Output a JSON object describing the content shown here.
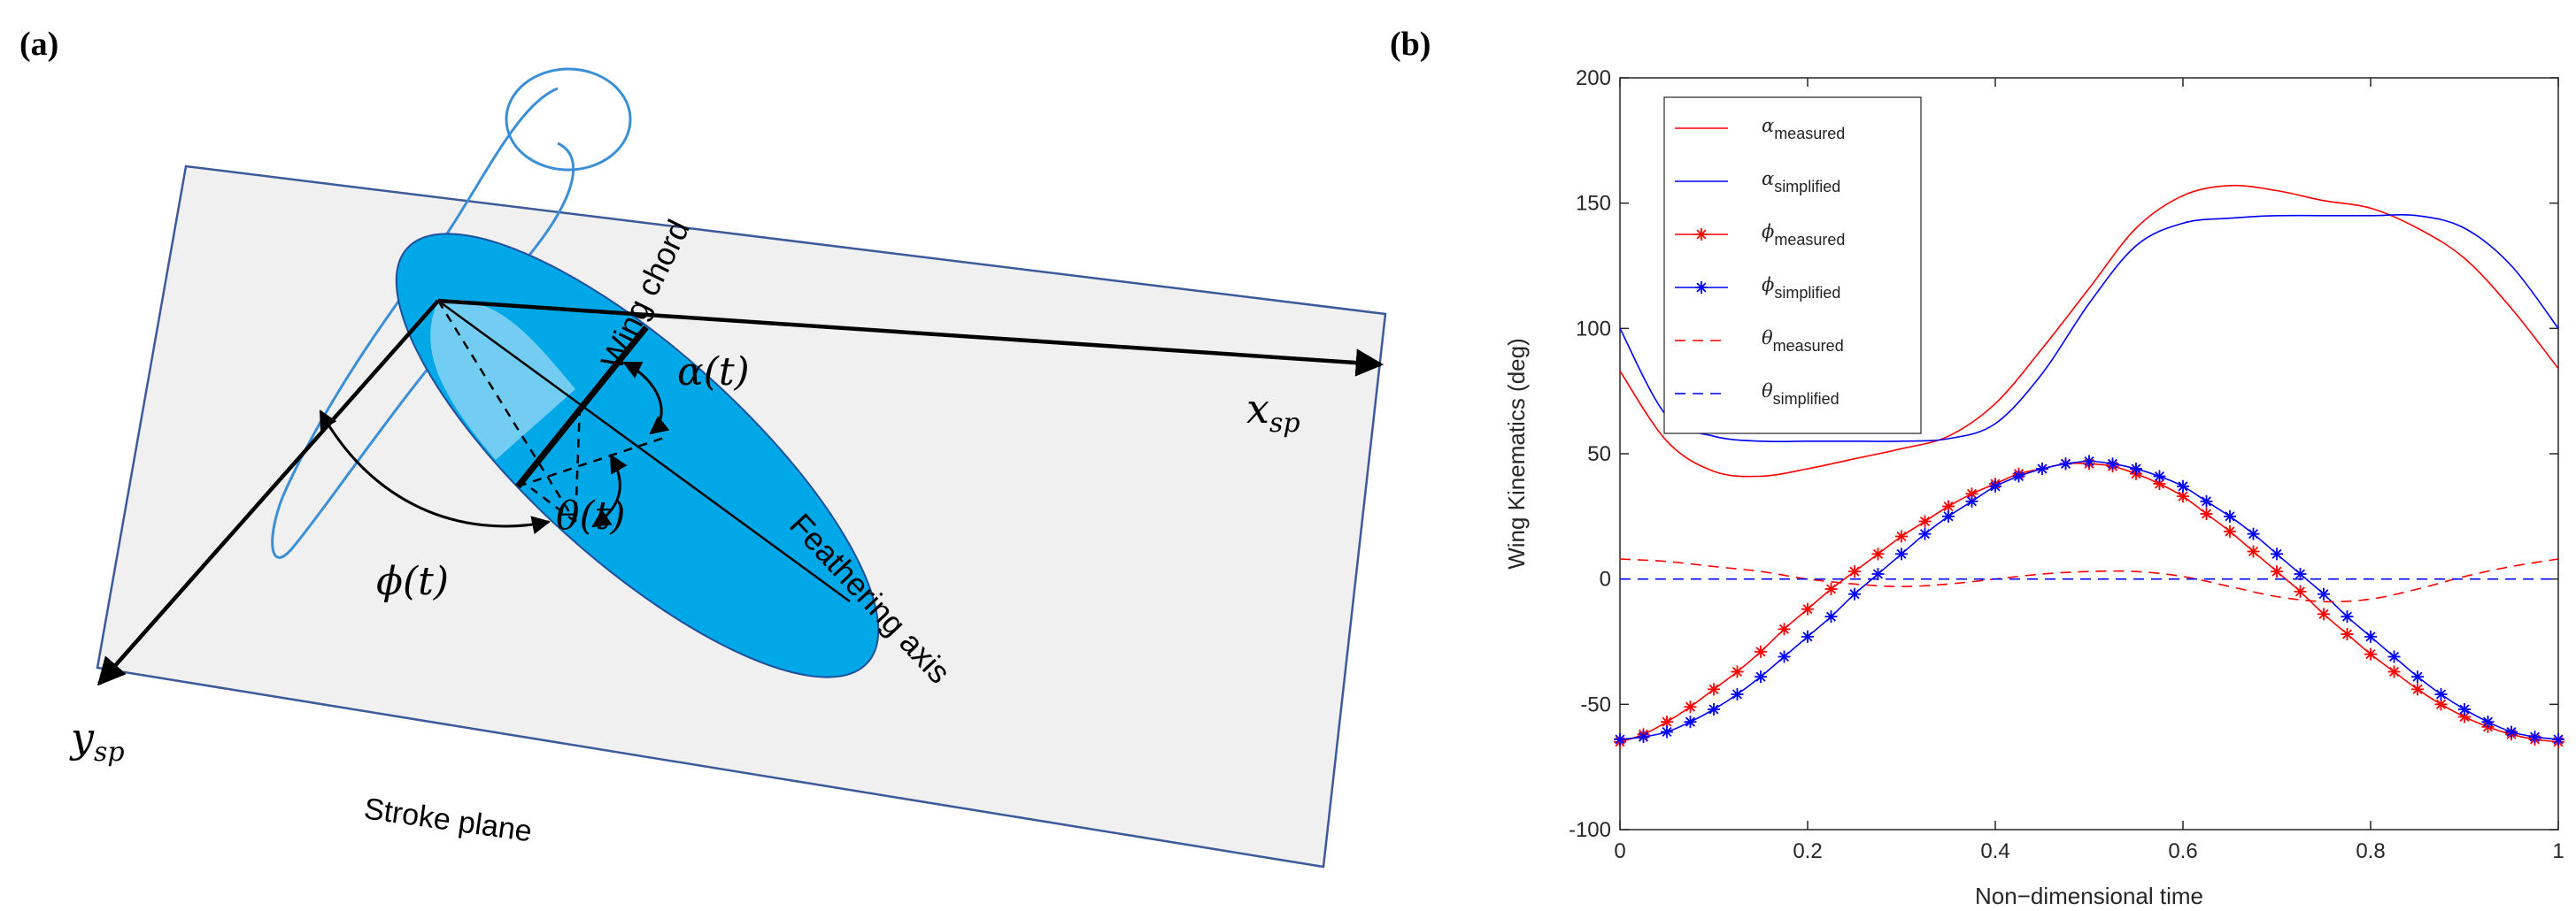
{
  "panels": {
    "a_label": "(a)",
    "b_label": "(b)"
  },
  "diagram": {
    "x_axis_label": "x",
    "x_axis_sub": "sp",
    "y_axis_label": "y",
    "y_axis_sub": "sp",
    "stroke_plane": "Stroke plane",
    "wing_chord": "Wing chord",
    "feathering_axis": "Feathering axis",
    "alpha": "α(t)",
    "theta": "θ(t)",
    "phi": "ϕ(t)",
    "colors": {
      "plane_fill": "#f0f0f0",
      "plane_stroke": "#3c5a9a",
      "wing_fill": "#00a8e8",
      "wing_light": "#7fd0f3",
      "path_stroke": "#3a8fd6"
    }
  },
  "chart_data": {
    "type": "line",
    "title": "",
    "xlabel": "Non−dimensional time",
    "ylabel": "Wing Kinematics (deg)",
    "xlim": [
      0,
      1
    ],
    "ylim": [
      -100,
      200
    ],
    "xticks": [
      0,
      0.2,
      0.4,
      0.6,
      0.8,
      1
    ],
    "xtick_labels": [
      "0",
      "0.2",
      "0.4",
      "0.6",
      "0.8",
      "1"
    ],
    "yticks": [
      -100,
      -50,
      0,
      50,
      100,
      150,
      200
    ],
    "ytick_labels": [
      "-100",
      "-50",
      "0",
      "50",
      "100",
      "150",
      "200"
    ],
    "legend_position": "top-left",
    "series": [
      {
        "name": "α",
        "sub": "measured",
        "color": "#ff0000",
        "style": "solid",
        "marker": "none",
        "x": [
          0,
          0.05,
          0.1,
          0.15,
          0.2,
          0.25,
          0.3,
          0.35,
          0.4,
          0.45,
          0.5,
          0.55,
          0.6,
          0.65,
          0.7,
          0.75,
          0.8,
          0.85,
          0.9,
          0.95,
          1.0
        ],
        "y": [
          83,
          55,
          43,
          41,
          44,
          48,
          52,
          57,
          70,
          92,
          116,
          140,
          153,
          157,
          155,
          151,
          148,
          140,
          128,
          108,
          84
        ]
      },
      {
        "name": "α",
        "sub": "simplified",
        "color": "#0000ff",
        "style": "solid",
        "marker": "none",
        "x": [
          0,
          0.05,
          0.1,
          0.15,
          0.2,
          0.25,
          0.3,
          0.35,
          0.4,
          0.45,
          0.5,
          0.55,
          0.6,
          0.65,
          0.7,
          0.75,
          0.8,
          0.85,
          0.9,
          0.95,
          1.0
        ],
        "y": [
          100,
          65,
          57,
          55,
          55,
          55,
          55,
          56,
          62,
          82,
          110,
          133,
          142,
          144,
          145,
          145,
          145,
          145,
          140,
          125,
          100
        ]
      },
      {
        "name": "ϕ",
        "sub": "measured",
        "color": "#ff0000",
        "style": "solid",
        "marker": "star",
        "x": [
          0,
          0.025,
          0.05,
          0.075,
          0.1,
          0.125,
          0.15,
          0.175,
          0.2,
          0.225,
          0.25,
          0.275,
          0.3,
          0.325,
          0.35,
          0.375,
          0.4,
          0.425,
          0.45,
          0.475,
          0.5,
          0.525,
          0.55,
          0.575,
          0.6,
          0.625,
          0.65,
          0.675,
          0.7,
          0.725,
          0.75,
          0.775,
          0.8,
          0.825,
          0.85,
          0.875,
          0.9,
          0.925,
          0.95,
          0.975,
          1.0
        ],
        "y": [
          -65,
          -62,
          -57,
          -51,
          -44,
          -37,
          -29,
          -20,
          -12,
          -4,
          3,
          10,
          17,
          23,
          29,
          34,
          38,
          42,
          44,
          46,
          46,
          45,
          42,
          38,
          33,
          26,
          19,
          11,
          3,
          -5,
          -14,
          -22,
          -30,
          -37,
          -44,
          -50,
          -55,
          -59,
          -62,
          -64,
          -65
        ]
      },
      {
        "name": "ϕ",
        "sub": "simplified",
        "color": "#0000ff",
        "style": "solid",
        "marker": "star",
        "x": [
          0,
          0.025,
          0.05,
          0.075,
          0.1,
          0.125,
          0.15,
          0.175,
          0.2,
          0.225,
          0.25,
          0.275,
          0.3,
          0.325,
          0.35,
          0.375,
          0.4,
          0.425,
          0.45,
          0.475,
          0.5,
          0.525,
          0.55,
          0.575,
          0.6,
          0.625,
          0.65,
          0.675,
          0.7,
          0.725,
          0.75,
          0.775,
          0.8,
          0.825,
          0.85,
          0.875,
          0.9,
          0.925,
          0.95,
          0.975,
          1.0
        ],
        "y": [
          -64,
          -63,
          -61,
          -57,
          -52,
          -46,
          -39,
          -31,
          -23,
          -15,
          -6,
          2,
          10,
          18,
          25,
          31,
          37,
          41,
          44,
          46,
          47,
          46,
          44,
          41,
          37,
          31,
          25,
          18,
          10,
          2,
          -6,
          -15,
          -23,
          -31,
          -39,
          -46,
          -52,
          -57,
          -61,
          -63,
          -64
        ]
      },
      {
        "name": "θ",
        "sub": "measured",
        "color": "#ff0000",
        "style": "dashed",
        "marker": "none",
        "x": [
          0,
          0.05,
          0.1,
          0.15,
          0.2,
          0.25,
          0.3,
          0.35,
          0.4,
          0.45,
          0.5,
          0.55,
          0.6,
          0.65,
          0.7,
          0.75,
          0.8,
          0.85,
          0.9,
          0.95,
          1.0
        ],
        "y": [
          8,
          7,
          5,
          3,
          0,
          -2,
          -3,
          -2,
          0,
          2,
          3,
          3,
          1,
          -3,
          -7,
          -9,
          -8,
          -4,
          1,
          5,
          8
        ]
      },
      {
        "name": "θ",
        "sub": "simplified",
        "color": "#0000ff",
        "style": "dashed",
        "marker": "none",
        "x": [
          0,
          0.25,
          0.5,
          0.75,
          1.0
        ],
        "y": [
          0,
          0,
          0,
          0,
          0
        ]
      }
    ]
  }
}
